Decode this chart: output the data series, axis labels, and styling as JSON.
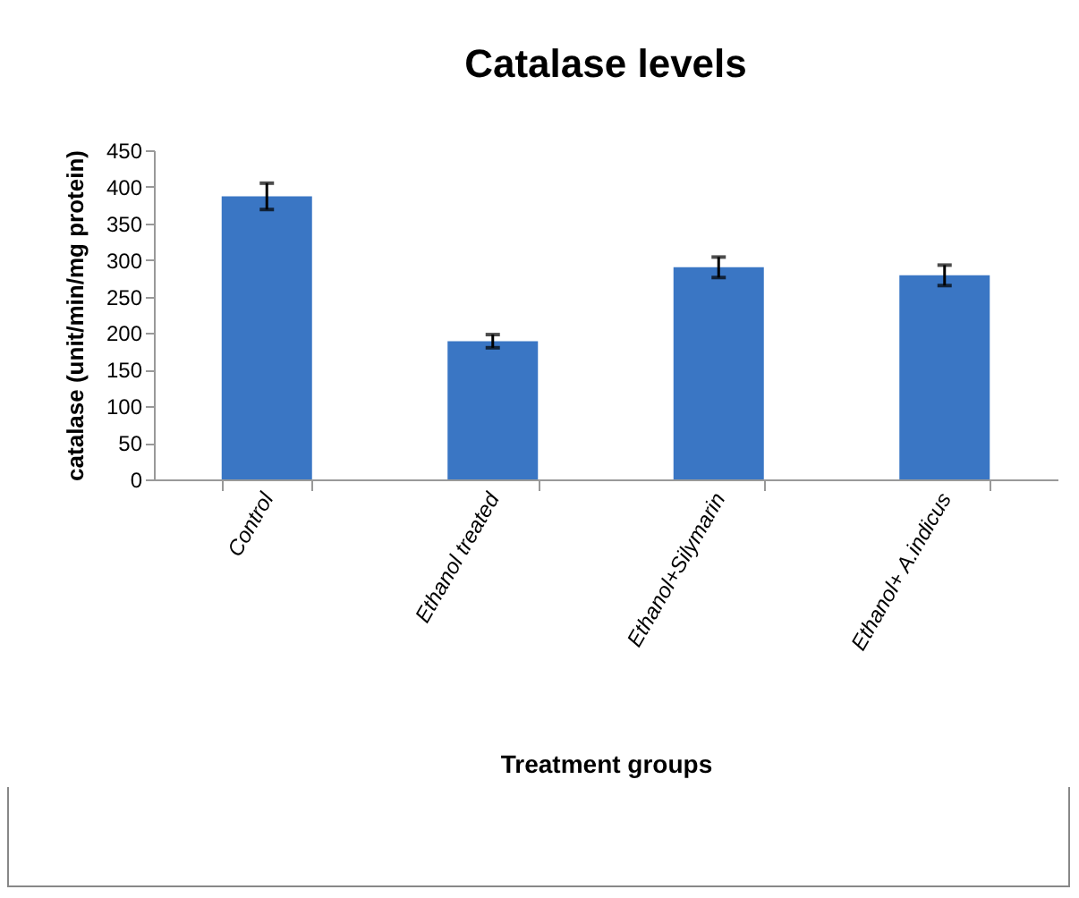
{
  "chart_data": {
    "type": "bar",
    "title": "Catalase levels",
    "xlabel": "Treatment groups",
    "ylabel": "catalase (unit/min/mg protein)",
    "categories": [
      "Control",
      "Ethanol treated",
      "Ethanol+Silymarin",
      "Ethanol+ A.indicus"
    ],
    "values": [
      387,
      189,
      290,
      279
    ],
    "errors": [
      18,
      9,
      14,
      14
    ],
    "color": "#3a76c4",
    "ylim": [
      0,
      450
    ],
    "yticks": [
      0,
      50,
      100,
      150,
      200,
      250,
      300,
      350,
      400,
      450
    ],
    "grid": false
  }
}
